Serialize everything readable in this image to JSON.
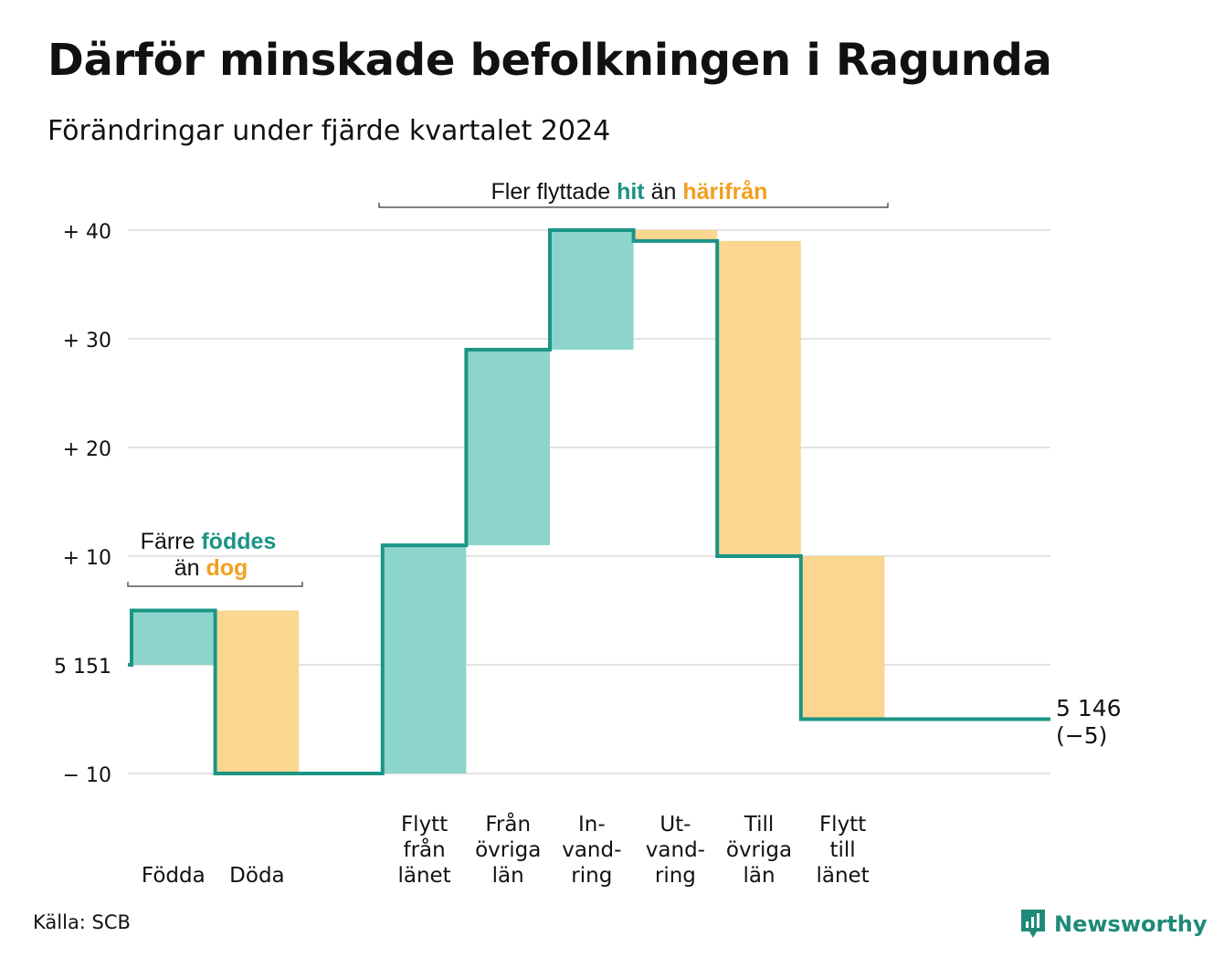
{
  "title": "Därför minskade befolkningen i Ragunda",
  "subtitle": "Förändringar under fjärde kvartalet 2024",
  "source": "Källa: SCB",
  "brand": "Newsworthy",
  "colors": {
    "line": "#1b9485",
    "increase": "#8dd5cc",
    "decrease": "#fad690",
    "grid": "#e3e3e3",
    "accent_orange": "#f0a020"
  },
  "annotations": {
    "births": {
      "line1_prefix": "Färre",
      "line1_highlight": "föddes",
      "line2_prefix": "än",
      "line2_highlight": "dog"
    },
    "migration": {
      "prefix": "Fler flyttade",
      "highlight1": "hit",
      "middle": "än",
      "highlight2": "härifrån"
    }
  },
  "chart_data": {
    "type": "waterfall",
    "start_value": 5151,
    "start_label": "5 151",
    "end_label": "5 146",
    "end_change_label": "(−5)",
    "y_ticks": [
      {
        "value": -10,
        "label": "− 10"
      },
      {
        "value": 0,
        "label": "5 151"
      },
      {
        "value": 10,
        "label": "+ 10"
      },
      {
        "value": 20,
        "label": "+ 20"
      },
      {
        "value": 30,
        "label": "+ 30"
      },
      {
        "value": 40,
        "label": "+ 40"
      }
    ],
    "ylim": [
      -10,
      40
    ],
    "steps": [
      {
        "label": [
          "Födda"
        ],
        "change": 5
      },
      {
        "label": [
          "Döda"
        ],
        "change": -15
      },
      {
        "label": [],
        "change": 0
      },
      {
        "label": [
          "Flytt",
          "från",
          "länet"
        ],
        "change": 21
      },
      {
        "label": [
          "Från",
          "övriga",
          "län"
        ],
        "change": 18
      },
      {
        "label": [
          "In-",
          "vand-",
          "ring"
        ],
        "change": 11
      },
      {
        "label": [
          "Ut-",
          "vand-",
          "ring"
        ],
        "change": -1
      },
      {
        "label": [
          "Till",
          "övriga",
          "län"
        ],
        "change": -29
      },
      {
        "label": [
          "Flytt",
          "till",
          "länet"
        ],
        "change": -15
      }
    ],
    "total_change": -5,
    "grid": true
  }
}
